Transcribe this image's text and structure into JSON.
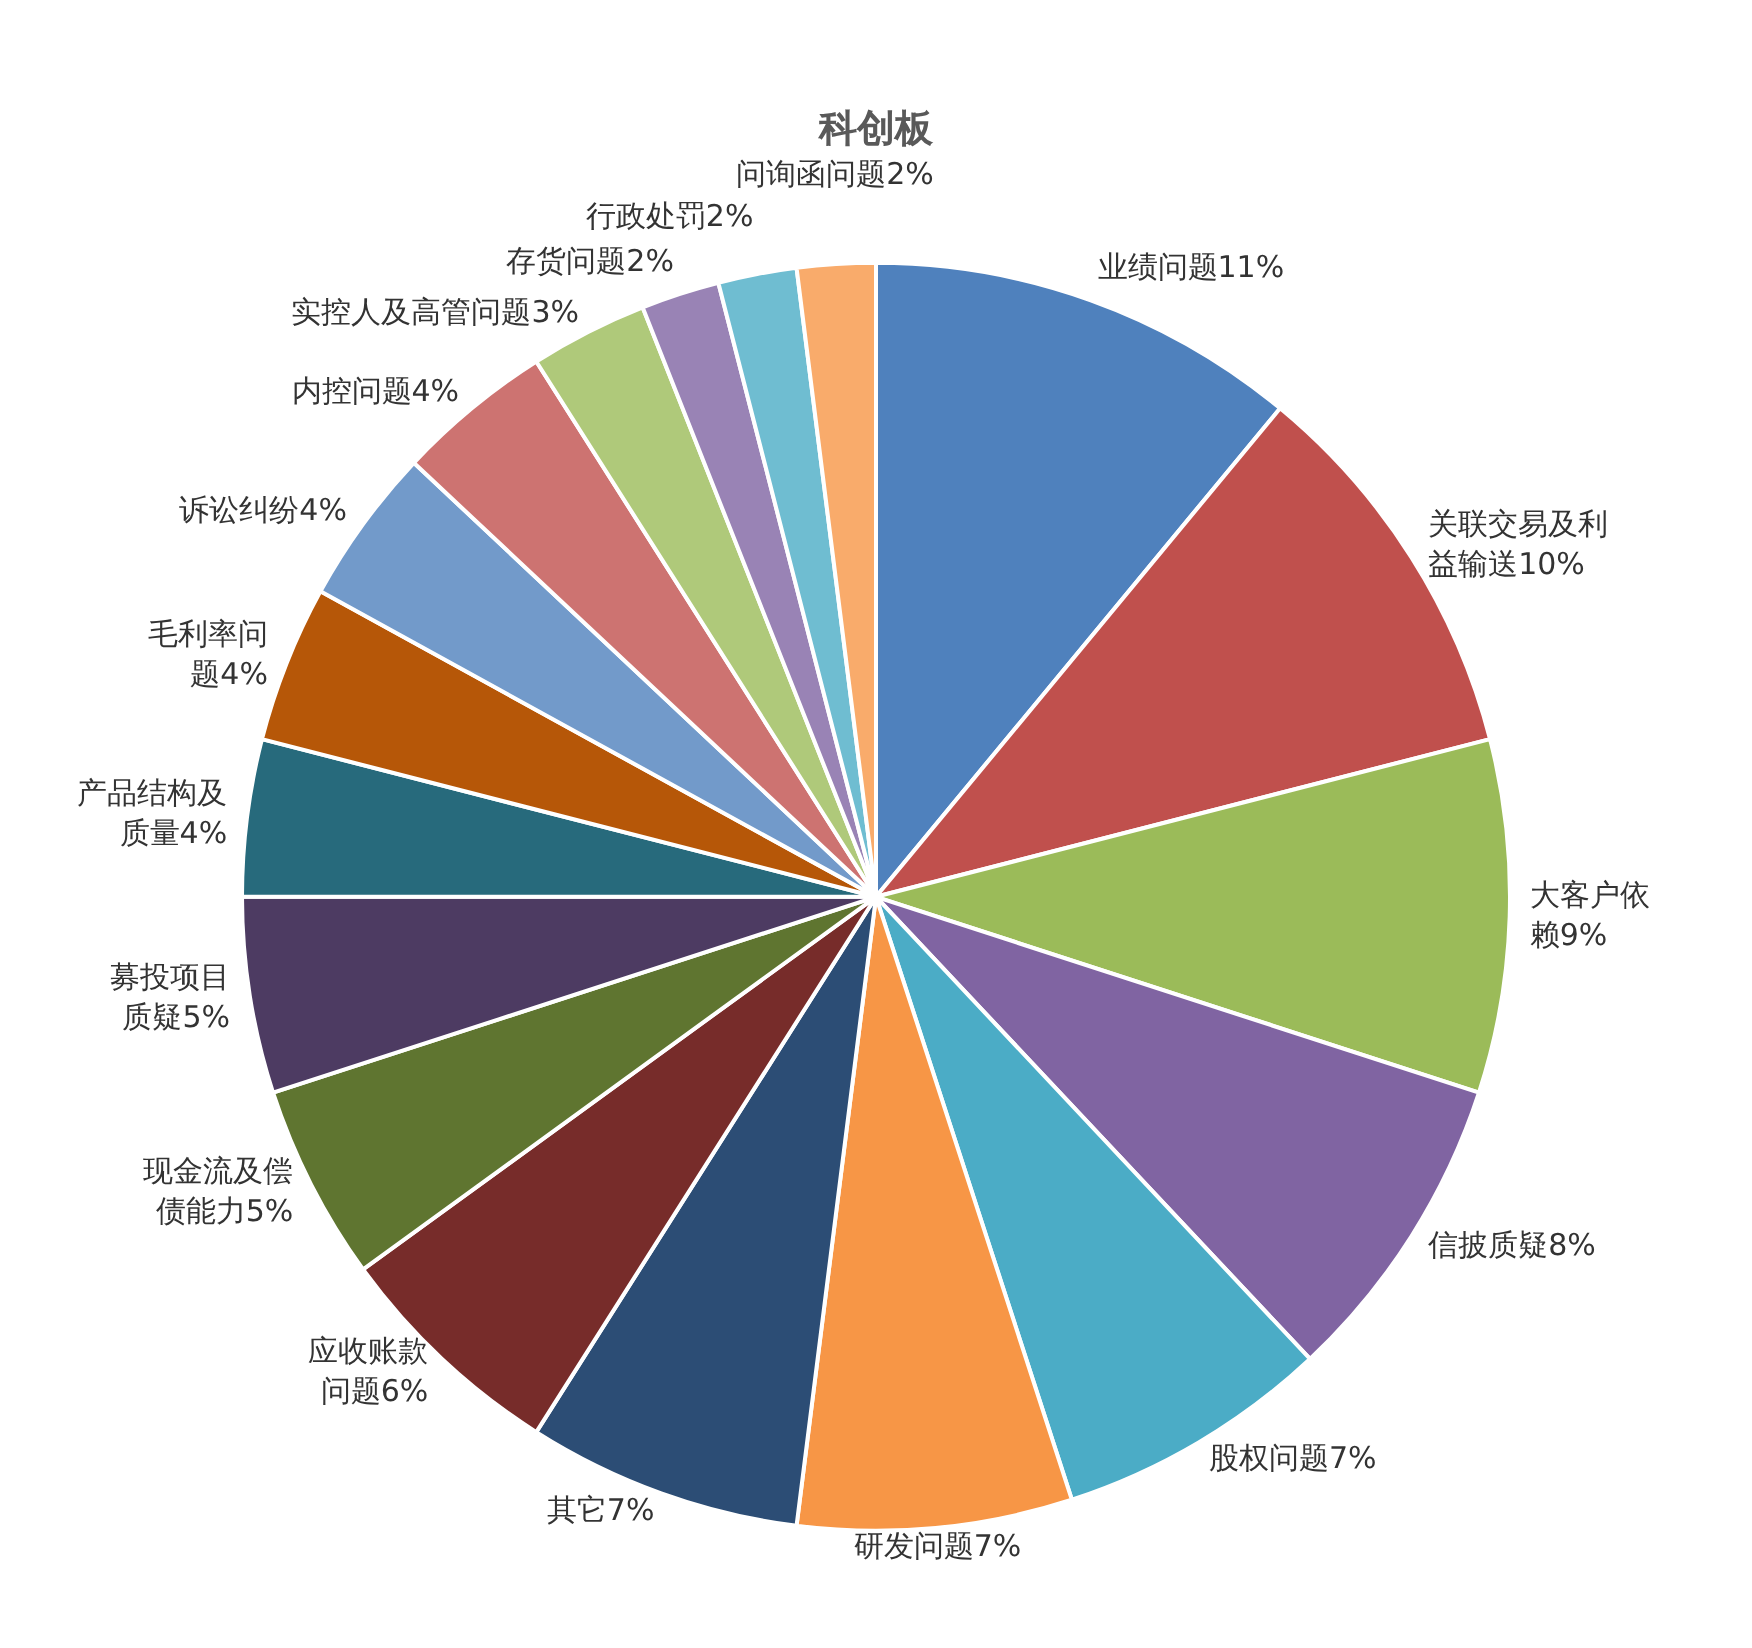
{
  "chart_data": {
    "type": "pie",
    "title": "科创板",
    "categories": [
      "业绩问题",
      "关联交易及利益输送",
      "大客户依赖",
      "信披质疑",
      "股权问题",
      "研发问题",
      "其它",
      "应收账款问题",
      "现金流及偿债能力",
      "募投项目质疑",
      "产品结构及质量",
      "毛利率问题",
      "诉讼纠纷",
      "内控问题",
      "实控人及高管问题",
      "存货问题",
      "行政处罚",
      "问询函问题"
    ],
    "values": [
      11,
      10,
      9,
      8,
      7,
      7,
      7,
      6,
      5,
      5,
      4,
      4,
      4,
      4,
      3,
      2,
      2,
      2
    ],
    "value_labels": [
      "11%",
      "10%",
      "9%",
      "8%",
      "7%",
      "7%",
      "7%",
      "6%",
      "5%",
      "5%",
      "4%",
      "4%",
      "4%",
      "4%",
      "3%",
      "2%",
      "2%",
      "2%"
    ],
    "colors": [
      "#4f81bd",
      "#c0504d",
      "#9bbb59",
      "#8064a2",
      "#4bacc6",
      "#f79646",
      "#2c4d75",
      "#772c2a",
      "#5f7530",
      "#4d3b62",
      "#276a7c",
      "#b65708",
      "#729aca",
      "#cd7371",
      "#afc97a",
      "#9983b5",
      "#6fbdd1",
      "#f9ab6b"
    ],
    "legend": false
  }
}
